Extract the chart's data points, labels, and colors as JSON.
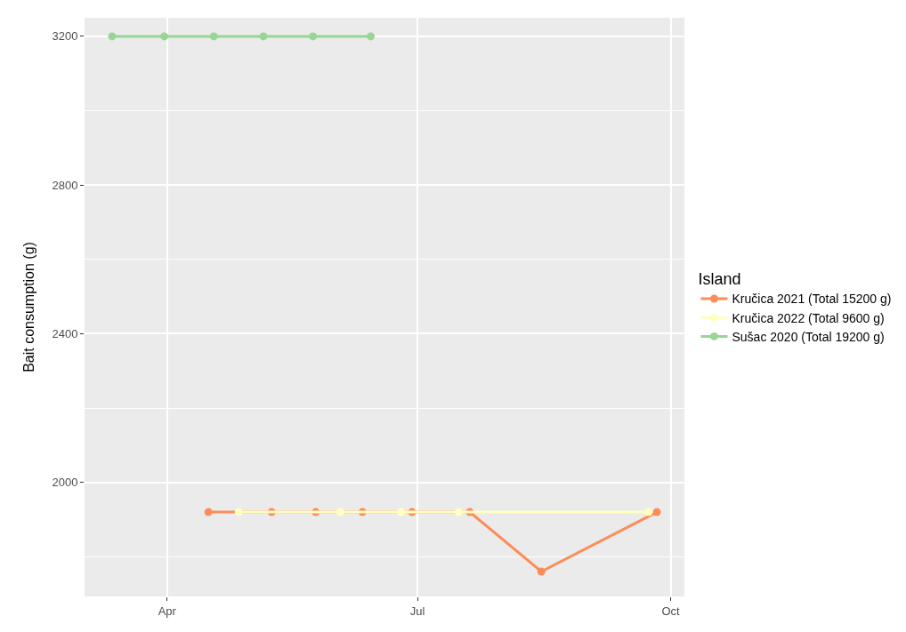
{
  "chart_data": {
    "type": "line",
    "ylabel": "Bait consumption (g)",
    "legend_title": "Island",
    "legend": "right",
    "grid": true,
    "marker": "circle",
    "line_style": "solid",
    "xlim": [
      "--03-02",
      "--10-06"
    ],
    "xticks": [
      {
        "value": "--04-01",
        "label": "Apr"
      },
      {
        "value": "--07-01",
        "label": "Jul"
      },
      {
        "value": "--10-01",
        "label": "Oct"
      }
    ],
    "ylim": [
      1693,
      3250
    ],
    "yticks": [
      2000,
      2400,
      2800,
      3200
    ],
    "series": [
      {
        "name": "Kručica 2021 (Total 15200 g)",
        "color": "#fc8d59",
        "x": [
          "--04-16",
          "--05-09",
          "--05-25",
          "--06-11",
          "--06-29",
          "--07-20",
          "--08-15",
          "--09-26"
        ],
        "values": [
          1920,
          1920,
          1920,
          1920,
          1920,
          1920,
          1760,
          1920
        ]
      },
      {
        "name": "Kručica 2022 (Total 9600 g)",
        "color": "#ffffbf",
        "x": [
          "--04-27",
          "--06-03",
          "--06-25",
          "--07-16",
          "--09-23"
        ],
        "values": [
          1920,
          1920,
          1920,
          1920,
          1920
        ]
      },
      {
        "name": "Sušac 2020 (Total 19200 g)",
        "color": "#99d594",
        "x": [
          "--03-12",
          "--03-31",
          "--04-18",
          "--05-06",
          "--05-24",
          "--06-14"
        ],
        "values": [
          3200,
          3200,
          3200,
          3200,
          3200,
          3200
        ]
      }
    ]
  }
}
